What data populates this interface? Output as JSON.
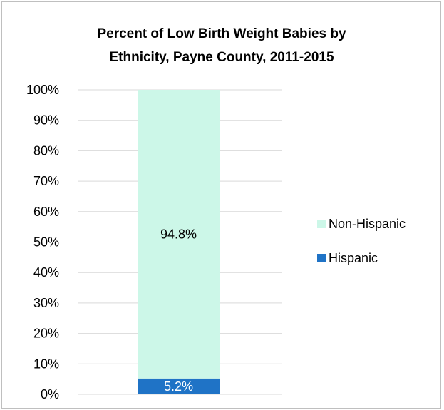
{
  "chart_data": {
    "type": "bar",
    "stacked": true,
    "percent_stacked": true,
    "title": "Percent of Low Birth Weight Babies by Ethnicity, Payne County, 2011-2015",
    "title_lines": [
      "Percent of Low Birth Weight Babies by",
      "Ethnicity, Payne County, 2011-2015"
    ],
    "categories": [
      ""
    ],
    "series": [
      {
        "name": "Hispanic",
        "values": [
          5.2
        ],
        "label": "5.2%",
        "color": "#1f73c6",
        "label_color": "#ffffff"
      },
      {
        "name": "Non-Hispanic",
        "values": [
          94.8
        ],
        "label": "94.8%",
        "color": "#ccf7e8",
        "label_color": "#000000"
      }
    ],
    "ylim": [
      0,
      100
    ],
    "y_ticks": [
      "0%",
      "10%",
      "20%",
      "30%",
      "40%",
      "50%",
      "60%",
      "70%",
      "80%",
      "90%",
      "100%"
    ],
    "grid": true,
    "legend": {
      "placement": "right",
      "order": [
        "Non-Hispanic",
        "Hispanic"
      ]
    },
    "xlabel": "",
    "ylabel": ""
  }
}
